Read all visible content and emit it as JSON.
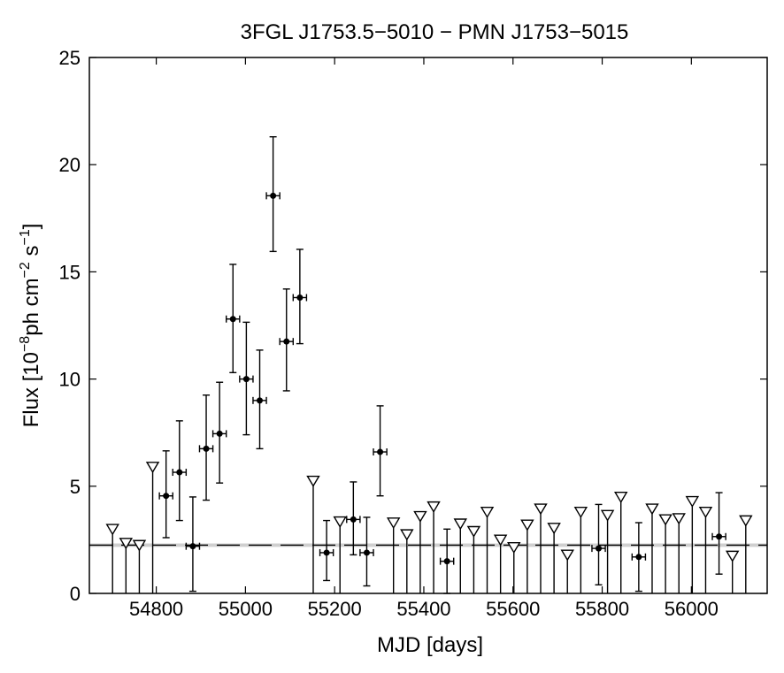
{
  "chart_data": {
    "type": "scatter",
    "title": "3FGL J1753.5−5010 − PMN J1753−5015",
    "xlabel": "MJD [days]",
    "ylabel_main": "Flux [10",
    "ylabel_sup1": "−8",
    "ylabel_mid": "ph cm",
    "ylabel_sup2": "−2",
    "ylabel_s": " s",
    "ylabel_sup3": "−1",
    "ylabel_end": "]",
    "xlim": [
      54650,
      56170
    ],
    "ylim": [
      0,
      25
    ],
    "x_ticks": [
      54800,
      55000,
      55200,
      55400,
      55600,
      55800,
      56000
    ],
    "y_ticks": [
      0,
      5,
      10,
      15,
      20,
      25
    ],
    "mean_flux": 2.25,
    "mean_band": [
      2.17,
      2.33
    ],
    "detections": [
      {
        "x": 54822,
        "y": 4.55,
        "xerr": 15,
        "ylo": 2.6,
        "yhi": 6.65
      },
      {
        "x": 54852,
        "y": 5.65,
        "xerr": 15,
        "ylo": 3.4,
        "yhi": 8.05
      },
      {
        "x": 54882,
        "y": 2.2,
        "xerr": 15,
        "ylo": 0.1,
        "yhi": 4.5
      },
      {
        "x": 54912,
        "y": 6.75,
        "xerr": 15,
        "ylo": 4.35,
        "yhi": 9.25
      },
      {
        "x": 54942,
        "y": 7.45,
        "xerr": 15,
        "ylo": 5.15,
        "yhi": 9.85
      },
      {
        "x": 54972,
        "y": 12.8,
        "xerr": 15,
        "ylo": 10.3,
        "yhi": 15.35
      },
      {
        "x": 55002,
        "y": 10.0,
        "xerr": 15,
        "ylo": 7.4,
        "yhi": 12.65
      },
      {
        "x": 55032,
        "y": 9.0,
        "xerr": 15,
        "ylo": 6.75,
        "yhi": 11.35
      },
      {
        "x": 55062,
        "y": 18.55,
        "xerr": 15,
        "ylo": 15.95,
        "yhi": 21.3
      },
      {
        "x": 55092,
        "y": 11.75,
        "xerr": 15,
        "ylo": 9.45,
        "yhi": 14.2
      },
      {
        "x": 55122,
        "y": 13.8,
        "xerr": 15,
        "ylo": 11.65,
        "yhi": 16.05
      },
      {
        "x": 55182,
        "y": 1.9,
        "xerr": 15,
        "ylo": 0.6,
        "yhi": 3.4
      },
      {
        "x": 55242,
        "y": 3.45,
        "xerr": 15,
        "ylo": 1.8,
        "yhi": 5.2
      },
      {
        "x": 55272,
        "y": 1.9,
        "xerr": 15,
        "ylo": 0.35,
        "yhi": 3.55
      },
      {
        "x": 55302,
        "y": 6.6,
        "xerr": 15,
        "ylo": 4.55,
        "yhi": 8.75
      },
      {
        "x": 55452,
        "y": 1.5,
        "xerr": 15,
        "ylo": 0.0,
        "yhi": 3.0
      },
      {
        "x": 55792,
        "y": 2.1,
        "xerr": 15,
        "ylo": 0.4,
        "yhi": 4.15
      },
      {
        "x": 55882,
        "y": 1.7,
        "xerr": 15,
        "ylo": 0.1,
        "yhi": 3.3
      },
      {
        "x": 56062,
        "y": 2.65,
        "xerr": 15,
        "ylo": 0.9,
        "yhi": 4.7
      }
    ],
    "upper_limits": [
      {
        "x": 54702,
        "y": 3.05
      },
      {
        "x": 54732,
        "y": 2.4
      },
      {
        "x": 54762,
        "y": 2.3
      },
      {
        "x": 54792,
        "y": 5.95
      },
      {
        "x": 55152,
        "y": 5.3
      },
      {
        "x": 55212,
        "y": 3.4
      },
      {
        "x": 55332,
        "y": 3.35
      },
      {
        "x": 55362,
        "y": 2.8
      },
      {
        "x": 55392,
        "y": 3.65
      },
      {
        "x": 55422,
        "y": 4.1
      },
      {
        "x": 55482,
        "y": 3.3
      },
      {
        "x": 55512,
        "y": 2.95
      },
      {
        "x": 55542,
        "y": 3.85
      },
      {
        "x": 55572,
        "y": 2.55
      },
      {
        "x": 55602,
        "y": 2.2
      },
      {
        "x": 55632,
        "y": 3.25
      },
      {
        "x": 55662,
        "y": 4.0
      },
      {
        "x": 55692,
        "y": 3.1
      },
      {
        "x": 55722,
        "y": 1.85
      },
      {
        "x": 55752,
        "y": 3.85
      },
      {
        "x": 55812,
        "y": 3.7
      },
      {
        "x": 55842,
        "y": 4.55
      },
      {
        "x": 55912,
        "y": 4.0
      },
      {
        "x": 55942,
        "y": 3.5
      },
      {
        "x": 55972,
        "y": 3.55
      },
      {
        "x": 56002,
        "y": 4.35
      },
      {
        "x": 56032,
        "y": 3.85
      },
      {
        "x": 56092,
        "y": 1.8
      },
      {
        "x": 56122,
        "y": 3.45
      }
    ]
  }
}
